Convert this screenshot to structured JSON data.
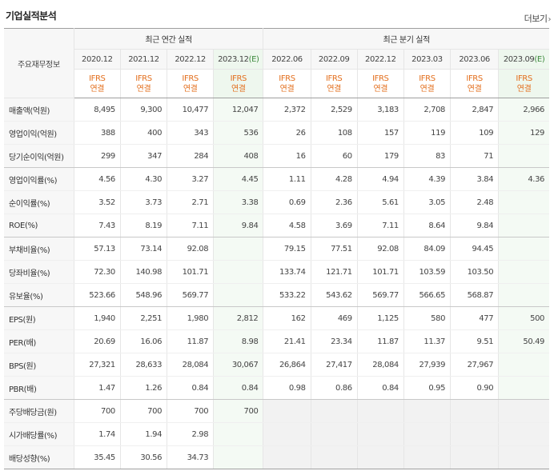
{
  "header": {
    "title": "기업실적분석",
    "more_label": "더보기",
    "more_arrow": "›"
  },
  "table": {
    "corner_label": "주요재무정보",
    "group_annual": "최근 연간 실적",
    "group_quarterly": "최근 분기 실적",
    "estimate_mark": "(E)",
    "periods": [
      {
        "label": "2020.12",
        "estimate": false
      },
      {
        "label": "2021.12",
        "estimate": false
      },
      {
        "label": "2022.12",
        "estimate": false
      },
      {
        "label": "2023.12",
        "estimate": true
      },
      {
        "label": "2022.06",
        "estimate": false
      },
      {
        "label": "2022.09",
        "estimate": false
      },
      {
        "label": "2022.12",
        "estimate": false
      },
      {
        "label": "2023.03",
        "estimate": false
      },
      {
        "label": "2023.06",
        "estimate": false
      },
      {
        "label": "2023.09",
        "estimate": true
      }
    ],
    "standard_line1": "IFRS",
    "standard_line2": "연결",
    "rows": [
      {
        "label": "매출액(억원)",
        "values": [
          "8,495",
          "9,300",
          "10,477",
          "12,047",
          "2,372",
          "2,529",
          "3,183",
          "2,708",
          "2,847",
          "2,966"
        ]
      },
      {
        "label": "영업이익(억원)",
        "values": [
          "388",
          "400",
          "343",
          "536",
          "26",
          "108",
          "157",
          "119",
          "109",
          "129"
        ]
      },
      {
        "label": "당기순이익(억원)",
        "values": [
          "299",
          "347",
          "284",
          "408",
          "16",
          "60",
          "179",
          "83",
          "71",
          ""
        ]
      },
      {
        "label": "영업이익률(%)",
        "values": [
          "4.56",
          "4.30",
          "3.27",
          "4.45",
          "1.11",
          "4.28",
          "4.94",
          "4.39",
          "3.84",
          "4.36"
        ]
      },
      {
        "label": "순이익률(%)",
        "values": [
          "3.52",
          "3.73",
          "2.71",
          "3.38",
          "0.69",
          "2.36",
          "5.61",
          "3.05",
          "2.48",
          ""
        ]
      },
      {
        "label": "ROE(%)",
        "values": [
          "7.43",
          "8.19",
          "7.11",
          "9.84",
          "4.58",
          "3.69",
          "7.11",
          "8.64",
          "9.84",
          ""
        ]
      },
      {
        "label": "부채비율(%)",
        "values": [
          "57.13",
          "73.14",
          "92.08",
          "",
          "79.15",
          "77.51",
          "92.08",
          "84.09",
          "94.45",
          ""
        ]
      },
      {
        "label": "당좌비율(%)",
        "values": [
          "72.30",
          "140.98",
          "101.71",
          "",
          "133.74",
          "121.71",
          "101.71",
          "103.59",
          "103.50",
          ""
        ]
      },
      {
        "label": "유보율(%)",
        "values": [
          "523.66",
          "548.96",
          "569.77",
          "",
          "533.22",
          "543.62",
          "569.77",
          "566.65",
          "568.87",
          ""
        ]
      },
      {
        "label": "EPS(원)",
        "values": [
          "1,940",
          "2,251",
          "1,980",
          "2,812",
          "162",
          "469",
          "1,125",
          "580",
          "477",
          "500"
        ]
      },
      {
        "label": "PER(배)",
        "values": [
          "20.69",
          "16.06",
          "11.87",
          "8.98",
          "21.41",
          "23.34",
          "11.87",
          "11.37",
          "9.51",
          "50.49"
        ]
      },
      {
        "label": "BPS(원)",
        "values": [
          "27,321",
          "28,633",
          "28,084",
          "30,067",
          "26,864",
          "27,417",
          "28,084",
          "27,939",
          "27,967",
          ""
        ]
      },
      {
        "label": "PBR(배)",
        "values": [
          "1.47",
          "1.26",
          "0.84",
          "0.84",
          "0.98",
          "0.86",
          "0.84",
          "0.95",
          "0.90",
          ""
        ]
      },
      {
        "label": "주당배당금(원)",
        "values": [
          "700",
          "700",
          "700",
          "700",
          "",
          "",
          "",
          "",
          "",
          ""
        ]
      },
      {
        "label": "시가배당률(%)",
        "values": [
          "1.74",
          "1.94",
          "2.98",
          "",
          "",
          "",
          "",
          "",
          "",
          ""
        ]
      },
      {
        "label": "배당성향(%)",
        "values": [
          "35.45",
          "30.56",
          "34.73",
          "",
          "",
          "",
          "",
          "",
          "",
          ""
        ]
      }
    ]
  }
}
